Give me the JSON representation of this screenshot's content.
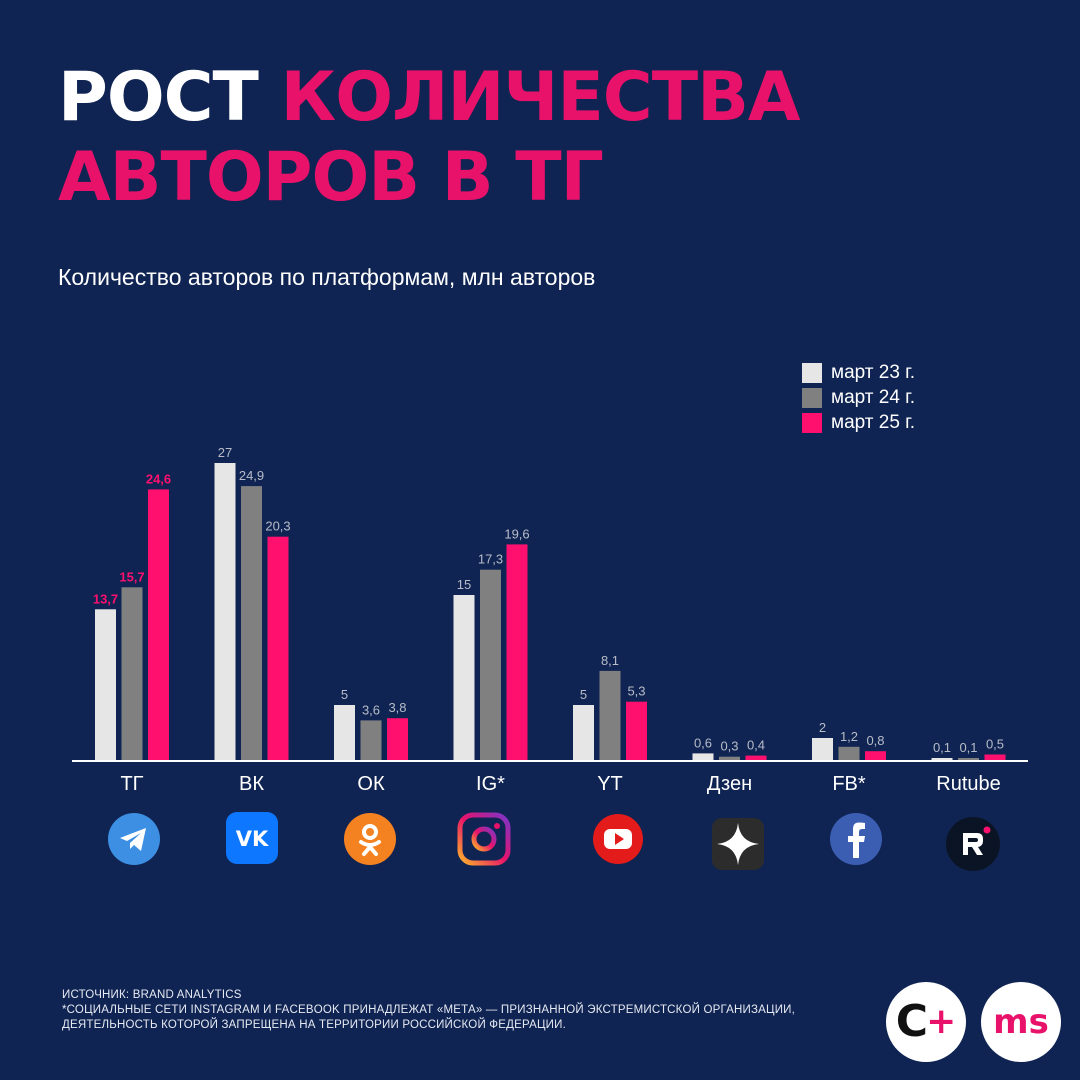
{
  "title": {
    "line1_white": "РОСТ ",
    "line1_pink": "КОЛИЧЕСТВА",
    "line2_pink": "АВТОРОВ В ТГ"
  },
  "subtitle": "Количество авторов по платформам, млн авторов",
  "colors": {
    "background": "#0f2452",
    "accent": "#e8126a",
    "series": [
      "#e6e6e6",
      "#808080",
      "#ff0f6e"
    ]
  },
  "chart_data": {
    "type": "bar",
    "title": "Количество авторов по платформам, млн авторов",
    "categories": [
      "ТГ",
      "ВК",
      "ОК",
      "IG*",
      "YT",
      "Дзен",
      "FB*",
      "Rutube"
    ],
    "series": [
      {
        "name": "март 23 г.",
        "values": [
          13.7,
          27,
          5,
          15,
          5,
          0.6,
          2,
          0.1
        ],
        "labels": [
          "13,7",
          "27",
          "5",
          "15",
          "5",
          "0,6",
          "2",
          "0,1"
        ]
      },
      {
        "name": "март 24 г.",
        "values": [
          15.7,
          24.9,
          3.6,
          17.3,
          8.1,
          0.3,
          1.2,
          0.1
        ],
        "labels": [
          "15,7",
          "24,9",
          "3,6",
          "17,3",
          "8,1",
          "0,3",
          "1,2",
          "0,1"
        ]
      },
      {
        "name": "март 25 г.",
        "values": [
          24.6,
          20.3,
          3.8,
          19.6,
          5.3,
          0.4,
          0.8,
          0.5
        ],
        "labels": [
          "24,6",
          "20,3",
          "3,8",
          "19,6",
          "5,3",
          "0,4",
          "0,8",
          "0,5"
        ]
      }
    ],
    "highlight_category": "ТГ",
    "ylim": [
      0,
      27
    ],
    "grid": false,
    "legend_position": "top-right"
  },
  "icons": [
    "telegram-icon",
    "vk-icon",
    "odnoklassniki-icon",
    "instagram-icon",
    "youtube-icon",
    "dzen-icon",
    "facebook-icon",
    "rutube-icon"
  ],
  "footer": {
    "line1": "ИСТОЧНИК: BRAND ANALYTICS",
    "line2": "*СОЦИАЛЬНЫЕ СЕТИ INSTAGRAM  И FACEBOOK ПРИНАДЛЕЖАТ «МЕТА» — ПРИЗНАННОЙ ЭКСТРЕМИСТСКОЙ ОРГАНИЗАЦИИ,",
    "line3": "ДЕЯТЕЛЬНОСТЬ КОТОРОЙ ЗАПРЕЩЕНА НА ТЕРРИТОРИИ РОССИЙСКОЙ ФЕДЕРАЦИИ."
  },
  "logos": {
    "left_text": "С",
    "left_plus": "+",
    "right_text": "ms"
  }
}
